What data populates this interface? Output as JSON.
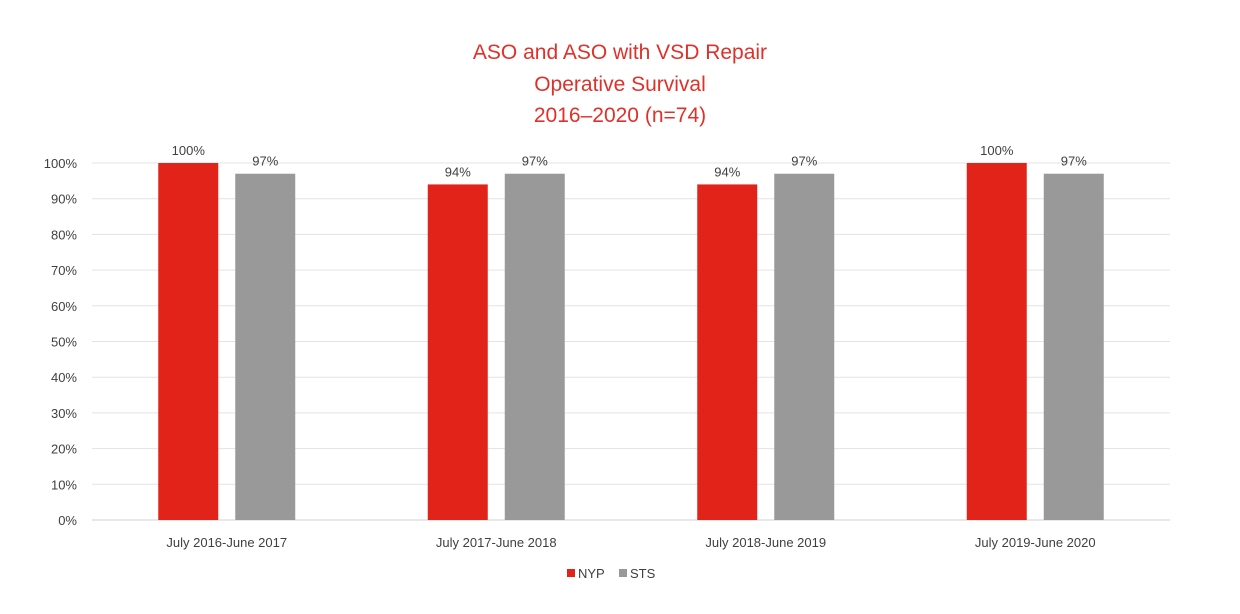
{
  "chart_data": {
    "type": "bar",
    "title": [
      "ASO and ASO with VSD Repair",
      "Operative Survival",
      "2016–2020 (n=74)"
    ],
    "xlabel": "",
    "ylabel": "",
    "ylim": [
      0,
      100
    ],
    "yticks": [
      0,
      10,
      20,
      30,
      40,
      50,
      60,
      70,
      80,
      90,
      100
    ],
    "ytick_labels": [
      "0%",
      "10%",
      "20%",
      "30%",
      "40%",
      "50%",
      "60%",
      "70%",
      "80%",
      "90%",
      "100%"
    ],
    "grid": true,
    "legend_position": "bottom",
    "categories": [
      "July 2016-June 2017",
      "July 2017-June 2018",
      "July 2018-June 2019",
      "July 2019-June 2020"
    ],
    "series": [
      {
        "name": "NYP",
        "color": "#e2231a",
        "values": [
          100,
          94,
          94,
          100
        ],
        "labels": [
          "100%",
          "94%",
          "94%",
          "100%"
        ]
      },
      {
        "name": "STS",
        "color": "#999999",
        "values": [
          97,
          97,
          97,
          97
        ],
        "labels": [
          "97%",
          "97%",
          "97%",
          "97%"
        ]
      }
    ]
  }
}
